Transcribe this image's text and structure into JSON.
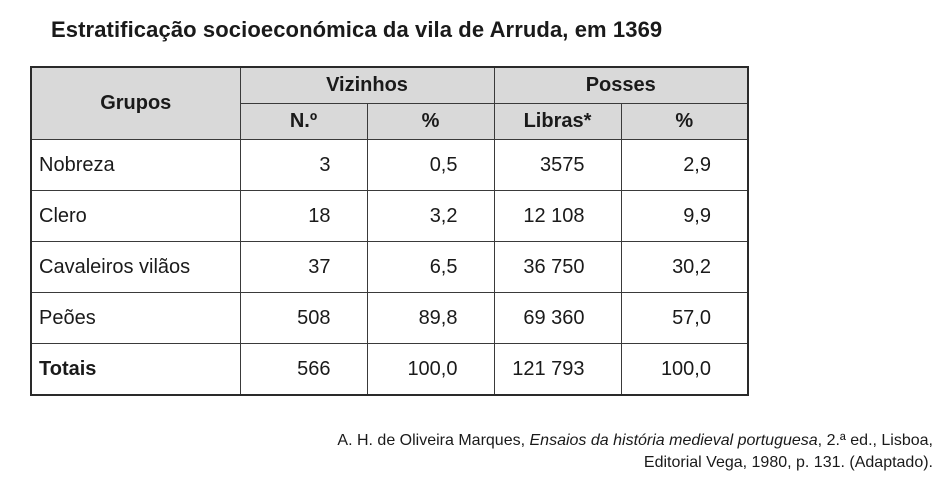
{
  "title": "Estratificação socioeconómica da vila de Arruda, em 1369",
  "header": {
    "grupos": "Grupos",
    "vizinhos": "Vizinhos",
    "posses": "Posses",
    "n": "N.º",
    "pct1": "%",
    "libras": "Libras*",
    "pct2": "%"
  },
  "rows": [
    {
      "grupo": "Nobreza",
      "n": "3",
      "pct_viz": "0,5",
      "libras": "3575",
      "pct_posses": "2,9"
    },
    {
      "grupo": "Clero",
      "n": "18",
      "pct_viz": "3,2",
      "libras": "12 108",
      "pct_posses": "9,9"
    },
    {
      "grupo": "Cavaleiros vilãos",
      "n": "37",
      "pct_viz": "6,5",
      "libras": "36 750",
      "pct_posses": "30,2"
    },
    {
      "grupo": "Peões",
      "n": "508",
      "pct_viz": "89,8",
      "libras": "69 360",
      "pct_posses": "57,0"
    },
    {
      "grupo": "Totais",
      "n": "566",
      "pct_viz": "100,0",
      "libras": "121 793",
      "pct_posses": "100,0"
    }
  ],
  "source": {
    "author": "A. H. de Oliveira Marques, ",
    "work": "Ensaios da história medieval portuguesa",
    "rest1": ", 2.ª ed., Lisboa,",
    "line2": "Editorial Vega, 1980, p. 131. (Adaptado)."
  }
}
